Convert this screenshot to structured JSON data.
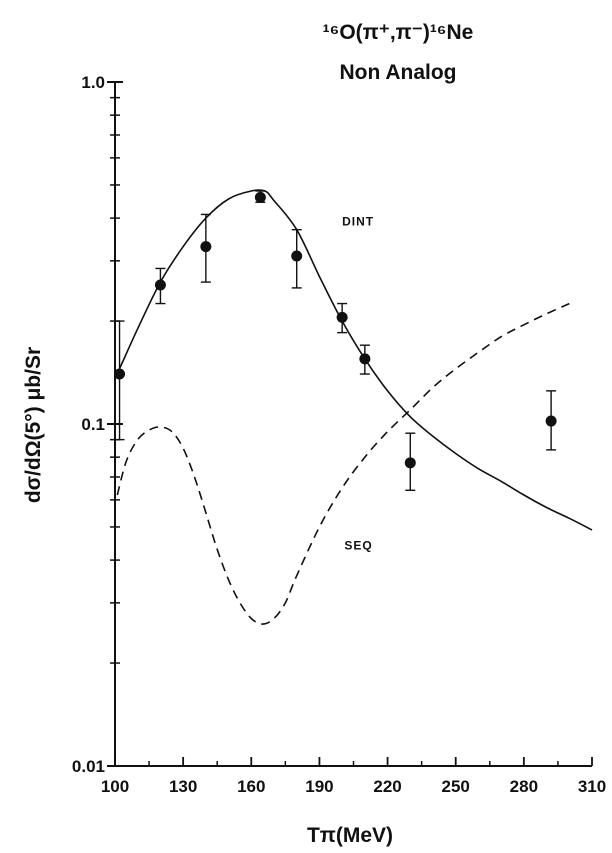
{
  "chart_data": {
    "type": "scatter",
    "title_lines": [
      "¹⁶O(π⁺,π⁻)¹⁶Ne",
      "Non Analog"
    ],
    "xlabel": "Tπ(MeV)",
    "ylabel": "dσ/dΩ(5°) μb/Sr",
    "xlim": [
      100,
      310
    ],
    "ylim": [
      0.01,
      1.0
    ],
    "y_scale": "log",
    "x_ticks": [
      100,
      130,
      160,
      190,
      220,
      250,
      280,
      310
    ],
    "x_tick_labels": [
      "100",
      "130",
      "160",
      "190",
      "220",
      "250",
      "280",
      "310"
    ],
    "y_ticks": [
      0.01,
      0.1,
      1.0
    ],
    "y_tick_labels": [
      "0.01",
      "0.1",
      "1.0"
    ],
    "grid": false,
    "series": [
      {
        "name": "DINT",
        "kind": "line",
        "style": "solid",
        "x": [
          102,
          110,
          120,
          130,
          140,
          150,
          160,
          166,
          170,
          180,
          190,
          200,
          210,
          220,
          230,
          240,
          250,
          260,
          270,
          280,
          290,
          300,
          310
        ],
        "y": [
          0.145,
          0.19,
          0.26,
          0.33,
          0.4,
          0.455,
          0.48,
          0.48,
          0.45,
          0.37,
          0.27,
          0.2,
          0.155,
          0.125,
          0.105,
          0.092,
          0.082,
          0.074,
          0.068,
          0.062,
          0.057,
          0.053,
          0.049
        ]
      },
      {
        "name": "SEQ",
        "kind": "line",
        "style": "dashed",
        "x": [
          101,
          105,
          110,
          115,
          120,
          125,
          130,
          135,
          140,
          145,
          150,
          155,
          160,
          165,
          170,
          175,
          180,
          190,
          200,
          210,
          220,
          230,
          240,
          250,
          260,
          270,
          280,
          290,
          300
        ],
        "y": [
          0.062,
          0.078,
          0.09,
          0.096,
          0.098,
          0.095,
          0.085,
          0.07,
          0.055,
          0.043,
          0.035,
          0.03,
          0.027,
          0.026,
          0.027,
          0.03,
          0.036,
          0.05,
          0.065,
          0.08,
          0.095,
          0.11,
          0.128,
          0.145,
          0.162,
          0.18,
          0.195,
          0.21,
          0.225
        ]
      },
      {
        "name": "data",
        "kind": "points",
        "x": [
          102,
          120,
          140,
          164,
          180,
          200,
          210,
          230,
          292
        ],
        "y": [
          0.14,
          0.255,
          0.33,
          0.46,
          0.31,
          0.205,
          0.155,
          0.077,
          0.102
        ],
        "y_err_low": [
          0.09,
          0.225,
          0.26,
          0.445,
          0.25,
          0.185,
          0.14,
          0.064,
          0.084
        ],
        "y_err_high": [
          0.2,
          0.285,
          0.41,
          0.48,
          0.37,
          0.225,
          0.17,
          0.094,
          0.125
        ]
      }
    ],
    "annotations": [
      {
        "text": "DINT",
        "x": 200,
        "y": 0.38
      },
      {
        "text": "SEQ",
        "x": 201,
        "y": 0.043
      }
    ]
  }
}
